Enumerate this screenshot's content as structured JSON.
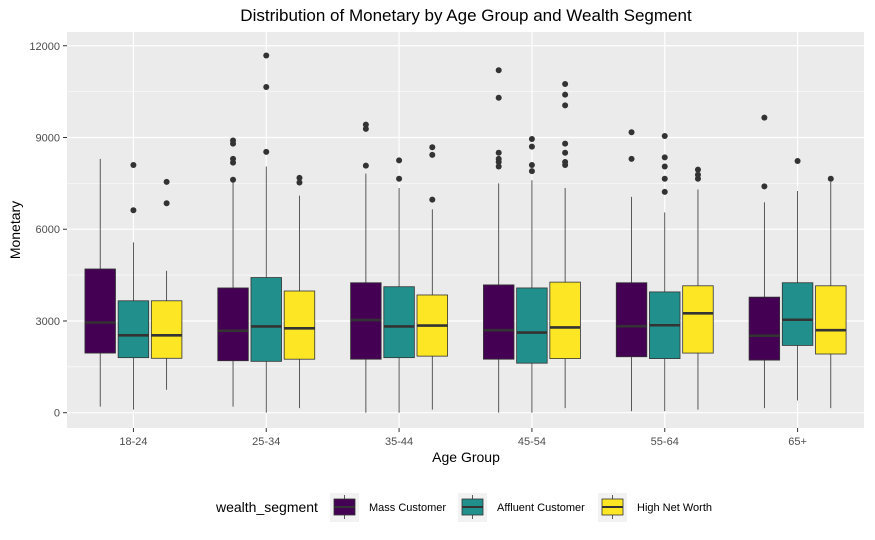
{
  "chart_data": {
    "type": "boxplot",
    "title": "Distribution of Monetary by Age Group and Wealth Segment",
    "xlabel": "Age Group",
    "ylabel": "Monetary",
    "ylim": [
      -500,
      12450
    ],
    "yticks": [
      0,
      3000,
      6000,
      9000,
      12000
    ],
    "yticks_labels": [
      "0",
      "3000",
      "6000",
      "9000",
      "12000"
    ],
    "categories": [
      "18-24",
      "25-34",
      "35-44",
      "45-54",
      "55-64",
      "65+"
    ],
    "grid": true,
    "legend": {
      "title": "wealth_segment",
      "position": "bottom"
    },
    "series": [
      {
        "name": "Mass Customer",
        "color": "#440154",
        "boxes": [
          {
            "whisker_low": 200,
            "q1": 1950,
            "median": 2950,
            "q3": 4700,
            "whisker_high": 8300,
            "outliers": []
          },
          {
            "whisker_low": 200,
            "q1": 1700,
            "median": 2680,
            "q3": 4080,
            "whisker_high": 7600,
            "outliers": [
              7620,
              8180,
              8300,
              8800,
              8900
            ]
          },
          {
            "whisker_low": 0,
            "q1": 1750,
            "median": 3030,
            "q3": 4250,
            "whisker_high": 7820,
            "outliers": [
              8080,
              9280,
              9420
            ]
          },
          {
            "whisker_low": 0,
            "q1": 1750,
            "median": 2700,
            "q3": 4180,
            "whisker_high": 7500,
            "outliers": [
              8050,
              8200,
              8300,
              8500,
              10300,
              11200
            ]
          },
          {
            "whisker_low": 50,
            "q1": 1830,
            "median": 2830,
            "q3": 4250,
            "whisker_high": 7060,
            "outliers": [
              8300,
              9170
            ]
          },
          {
            "whisker_low": 150,
            "q1": 1720,
            "median": 2520,
            "q3": 3780,
            "whisker_high": 6880,
            "outliers": [
              7400,
              9650
            ]
          }
        ]
      },
      {
        "name": "Affluent Customer",
        "color": "#21908C",
        "boxes": [
          {
            "whisker_low": 100,
            "q1": 1800,
            "median": 2530,
            "q3": 3660,
            "whisker_high": 5570,
            "outliers": [
              6620,
              8100
            ]
          },
          {
            "whisker_low": 0,
            "q1": 1680,
            "median": 2820,
            "q3": 4420,
            "whisker_high": 8050,
            "outliers": [
              8530,
              10650,
              11680
            ]
          },
          {
            "whisker_low": 0,
            "q1": 1800,
            "median": 2820,
            "q3": 4120,
            "whisker_high": 7350,
            "outliers": [
              7650,
              8250
            ]
          },
          {
            "whisker_low": 0,
            "q1": 1620,
            "median": 2620,
            "q3": 4080,
            "whisker_high": 7600,
            "outliers": [
              7900,
              8100,
              8700,
              8950
            ]
          },
          {
            "whisker_low": 50,
            "q1": 1770,
            "median": 2860,
            "q3": 3950,
            "whisker_high": 6550,
            "outliers": [
              7220,
              7650,
              8050,
              8350,
              9050
            ]
          },
          {
            "whisker_low": 400,
            "q1": 2200,
            "median": 3040,
            "q3": 4250,
            "whisker_high": 7250,
            "outliers": [
              8230
            ]
          }
        ]
      },
      {
        "name": "High Net Worth",
        "color": "#FDE725",
        "boxes": [
          {
            "whisker_low": 750,
            "q1": 1780,
            "median": 2530,
            "q3": 3660,
            "whisker_high": 4640,
            "outliers": [
              6850,
              7550
            ]
          },
          {
            "whisker_low": 150,
            "q1": 1750,
            "median": 2760,
            "q3": 3980,
            "whisker_high": 7100,
            "outliers": [
              7530,
              7680
            ]
          },
          {
            "whisker_low": 100,
            "q1": 1850,
            "median": 2850,
            "q3": 3850,
            "whisker_high": 6650,
            "outliers": [
              6970,
              8430,
              8680
            ]
          },
          {
            "whisker_low": 150,
            "q1": 1770,
            "median": 2790,
            "q3": 4270,
            "whisker_high": 7350,
            "outliers": [
              8100,
              8200,
              8500,
              8800,
              10050,
              10400,
              10750
            ]
          },
          {
            "whisker_low": 100,
            "q1": 1950,
            "median": 3250,
            "q3": 4150,
            "whisker_high": 7300,
            "outliers": [
              7650,
              7780,
              7950
            ]
          },
          {
            "whisker_low": 150,
            "q1": 1920,
            "median": 2700,
            "q3": 4150,
            "whisker_high": 7550,
            "outliers": [
              7650
            ]
          }
        ]
      }
    ]
  }
}
